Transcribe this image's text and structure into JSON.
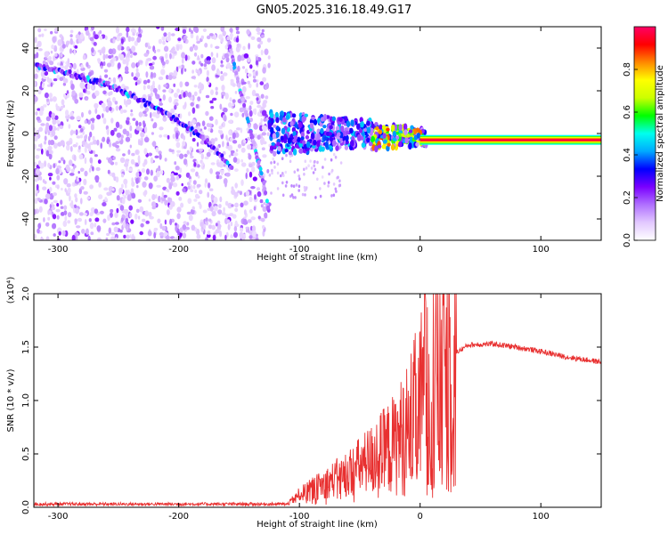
{
  "title": "GN05.2025.316.18.49.G17",
  "chart_data": [
    {
      "type": "heatmap",
      "name": "spectrogram",
      "xlabel": "Height of straight line (km)",
      "ylabel": "Frequency (Hz)",
      "xlim": [
        -320,
        150
      ],
      "ylim": [
        -50,
        50
      ],
      "xticks": [
        -300,
        -200,
        -100,
        0,
        100
      ],
      "xtick_labels": [
        "-300",
        "-200",
        "-100",
        "0",
        "100"
      ],
      "yticks": [
        -40,
        -20,
        0,
        20,
        40
      ],
      "ytick_labels": [
        "-40",
        "-20",
        "0",
        "20",
        "40"
      ],
      "colorbar": {
        "label": "Normalized spectral amplitude",
        "range": [
          0,
          1
        ],
        "ticks": [
          0.0,
          0.2,
          0.4,
          0.6,
          0.8
        ],
        "tick_labels": [
          "0.0",
          "0.2",
          "0.4",
          "0.6",
          "0.8"
        ],
        "colors": [
          "#ffffff",
          "#e2c8ff",
          "#b070ff",
          "#7a00ff",
          "#0000ff",
          "#00aaff",
          "#00ffee",
          "#00ff00",
          "#ccff00",
          "#ffff00",
          "#ff8800",
          "#ff0000",
          "#ff0066"
        ]
      },
      "features": [
        {
          "name": "descending-trace-1",
          "x": [
            -318,
            -290,
            -260,
            -240,
            -220,
            -200,
            -180,
            -165,
            -155
          ],
          "y": [
            32,
            28,
            23,
            18,
            12,
            6,
            -2,
            -10,
            -17
          ],
          "amp": 0.25
        },
        {
          "name": "descending-trace-2",
          "x": [
            -160,
            -150,
            -140,
            -130,
            -125
          ],
          "y": [
            47,
            22,
            0,
            -22,
            -38
          ],
          "amp": 0.15
        },
        {
          "name": "steady-line",
          "x": [
            0,
            150
          ],
          "y": [
            -3,
            -3
          ],
          "amp": 0.95
        }
      ]
    },
    {
      "type": "line",
      "name": "snr",
      "xlabel": "Height of straight line (km)",
      "ylabel": "SNR (10 * v/v)",
      "ylabel_scale": "(x10⁴)",
      "xlim": [
        -320,
        150
      ],
      "ylim": [
        0,
        2.0
      ],
      "xticks": [
        -300,
        -200,
        -100,
        0,
        100
      ],
      "xtick_labels": [
        "-300",
        "-200",
        "-100",
        "0",
        "100"
      ],
      "yticks": [
        0.0,
        0.5,
        1.0,
        1.5,
        2.0
      ],
      "ytick_labels": [
        "0.0",
        "0.5",
        "1.0",
        "1.5",
        "2.0"
      ],
      "color": "#e83030",
      "envelope_x": [
        -320,
        -110,
        -100,
        -80,
        -60,
        -40,
        -20,
        -10,
        0,
        5,
        10,
        20,
        30,
        40,
        60,
        80,
        100,
        120,
        150
      ],
      "envelope_y": [
        0.03,
        0.03,
        0.12,
        0.22,
        0.32,
        0.45,
        0.6,
        0.75,
        0.95,
        1.1,
        1.2,
        1.35,
        1.45,
        1.52,
        1.53,
        1.5,
        1.46,
        1.41,
        1.36
      ],
      "peak": {
        "x": 4,
        "y": 2.0
      }
    }
  ]
}
